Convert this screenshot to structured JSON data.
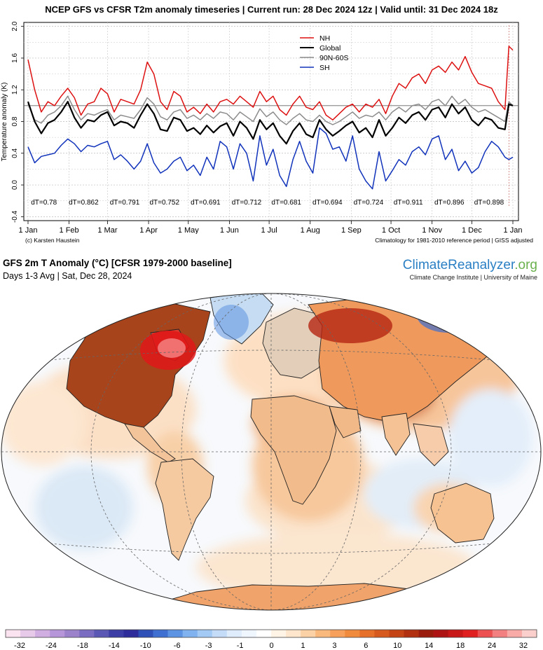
{
  "timeseries": {
    "title": "NCEP GFS vs CFSR T2m anomaly timeseries | Current run: 28 Dec 2024 12z | Valid until: 31 Dec 2024 18z",
    "credit_left": "(c) Karsten Haustein",
    "credit_right": "Climatology for 1981-2010 reference period | GISS adjusted"
  },
  "chart_data": {
    "type": "line",
    "title": "NCEP GFS vs CFSR T2m anomaly timeseries",
    "ylabel": "Temperature anomaly (K)",
    "xlabel": "",
    "ylim": [
      -0.45,
      2.05
    ],
    "xlim": [
      0,
      366
    ],
    "yticks": [
      -0.4,
      0.0,
      0.4,
      0.8,
      1.2,
      1.6,
      2.0
    ],
    "ytick_labels": [
      "-0.4",
      "0.0",
      "0.4",
      "0.8",
      "1.2",
      "1.6",
      "2.0"
    ],
    "reference_line": 1.0,
    "xticks": [
      0,
      31,
      60,
      91,
      121,
      152,
      182,
      213,
      244,
      274,
      305,
      335,
      366
    ],
    "xtick_labels": [
      "1 Jan",
      "1 Feb",
      "1 Mar",
      "1 Apr",
      "1 May",
      "1 Jun",
      "1 Jul",
      "1 Aug",
      "1 Sep",
      "1 Oct",
      "1 Nov",
      "1 Dec",
      "1 Jan"
    ],
    "legend": {
      "placement": "top-center",
      "entries": [
        "NH",
        "Global",
        "90N-60S",
        "SH"
      ]
    },
    "x": [
      0,
      5,
      10,
      15,
      20,
      25,
      30,
      35,
      40,
      45,
      50,
      55,
      60,
      65,
      70,
      75,
      80,
      85,
      90,
      95,
      100,
      105,
      110,
      115,
      120,
      125,
      130,
      135,
      140,
      145,
      150,
      155,
      160,
      165,
      170,
      175,
      180,
      185,
      190,
      195,
      200,
      205,
      210,
      215,
      220,
      225,
      230,
      235,
      240,
      245,
      250,
      255,
      260,
      265,
      270,
      275,
      280,
      285,
      290,
      295,
      300,
      305,
      310,
      315,
      320,
      325,
      330,
      335,
      340,
      345,
      350,
      355,
      360,
      363,
      366
    ],
    "series": [
      {
        "name": "NH",
        "color": "#dd1111",
        "values": [
          1.58,
          1.2,
          0.92,
          1.05,
          1.0,
          1.12,
          1.22,
          1.1,
          0.88,
          1.02,
          1.05,
          1.22,
          1.15,
          0.92,
          1.08,
          1.05,
          1.02,
          1.2,
          1.55,
          1.4,
          1.05,
          0.95,
          1.18,
          1.12,
          0.92,
          0.98,
          0.9,
          1.02,
          0.92,
          1.05,
          1.08,
          1.02,
          1.12,
          1.05,
          0.98,
          1.18,
          1.05,
          1.12,
          0.95,
          0.88,
          1.02,
          1.12,
          0.98,
          0.95,
          1.05,
          0.88,
          0.82,
          0.9,
          0.98,
          1.02,
          0.92,
          1.02,
          0.98,
          1.08,
          0.9,
          1.12,
          1.28,
          1.22,
          1.35,
          1.4,
          1.28,
          1.45,
          1.5,
          1.42,
          1.55,
          1.45,
          1.62,
          1.42,
          1.28,
          1.25,
          1.22,
          1.05,
          0.95,
          1.75,
          1.7
        ]
      },
      {
        "name": "90N-60S",
        "color": "#8c8c8c",
        "values": [
          1.02,
          0.82,
          0.78,
          0.88,
          0.92,
          1.0,
          1.12,
          0.95,
          0.82,
          0.9,
          0.88,
          0.92,
          0.95,
          0.82,
          0.88,
          0.86,
          0.84,
          0.95,
          1.1,
          1.02,
          0.86,
          0.82,
          0.92,
          0.95,
          0.84,
          0.88,
          0.82,
          0.9,
          0.84,
          0.92,
          0.9,
          0.82,
          0.92,
          0.86,
          0.8,
          0.96,
          0.86,
          0.92,
          0.82,
          0.76,
          0.84,
          0.9,
          0.82,
          0.8,
          0.88,
          0.8,
          0.76,
          0.8,
          0.86,
          0.92,
          0.84,
          0.88,
          0.86,
          0.92,
          0.82,
          0.92,
          0.98,
          0.92,
          1.0,
          1.02,
          0.95,
          1.05,
          1.08,
          1.0,
          1.12,
          1.02,
          1.08,
          0.98,
          0.92,
          0.95,
          0.9,
          0.85,
          0.8,
          1.05,
          1.0
        ]
      },
      {
        "name": "Global",
        "color": "#000000",
        "values": [
          1.05,
          0.8,
          0.65,
          0.78,
          0.82,
          0.92,
          1.05,
          0.85,
          0.72,
          0.82,
          0.8,
          0.88,
          0.92,
          0.75,
          0.8,
          0.78,
          0.72,
          0.88,
          1.02,
          0.9,
          0.7,
          0.68,
          0.85,
          0.82,
          0.68,
          0.72,
          0.64,
          0.75,
          0.66,
          0.74,
          0.78,
          0.62,
          0.8,
          0.72,
          0.58,
          0.82,
          0.7,
          0.78,
          0.62,
          0.52,
          0.68,
          0.78,
          0.64,
          0.6,
          0.82,
          0.7,
          0.62,
          0.68,
          0.75,
          0.8,
          0.66,
          0.72,
          0.6,
          0.82,
          0.62,
          0.72,
          0.85,
          0.78,
          0.88,
          0.92,
          0.82,
          0.95,
          0.98,
          0.85,
          1.02,
          0.9,
          0.98,
          0.82,
          0.75,
          0.85,
          0.82,
          0.72,
          0.7,
          1.02,
          1.0
        ]
      },
      {
        "name": "SH",
        "color": "#1133bb",
        "values": [
          0.48,
          0.28,
          0.36,
          0.38,
          0.4,
          0.5,
          0.58,
          0.52,
          0.42,
          0.5,
          0.48,
          0.52,
          0.55,
          0.32,
          0.38,
          0.3,
          0.2,
          0.3,
          0.52,
          0.28,
          0.15,
          0.2,
          0.3,
          0.35,
          0.18,
          0.25,
          0.12,
          0.35,
          0.2,
          0.55,
          0.48,
          0.2,
          0.52,
          0.4,
          0.05,
          0.62,
          0.25,
          0.45,
          0.12,
          -0.02,
          0.32,
          0.55,
          0.3,
          0.15,
          0.72,
          0.65,
          0.45,
          0.48,
          0.3,
          0.62,
          0.2,
          0.05,
          -0.05,
          0.42,
          0.05,
          0.18,
          0.32,
          0.25,
          0.42,
          0.48,
          0.38,
          0.58,
          0.62,
          0.32,
          0.45,
          0.18,
          0.3,
          0.15,
          0.22,
          0.42,
          0.55,
          0.48,
          0.35,
          0.32,
          0.35
        ]
      }
    ],
    "annotations": [
      {
        "x": 12,
        "text": "dT=0.78"
      },
      {
        "x": 42,
        "text": "dT=0.862"
      },
      {
        "x": 73,
        "text": "dT=0.791"
      },
      {
        "x": 103,
        "text": "dT=0.752"
      },
      {
        "x": 134,
        "text": "dT=0.691"
      },
      {
        "x": 165,
        "text": "dT=0.712"
      },
      {
        "x": 195,
        "text": "dT=0.681"
      },
      {
        "x": 226,
        "text": "dT=0.694"
      },
      {
        "x": 257,
        "text": "dT=0.724"
      },
      {
        "x": 287,
        "text": "dT=0.911"
      },
      {
        "x": 318,
        "text": "dT=0.896"
      },
      {
        "x": 348,
        "text": "dT=0.898"
      }
    ]
  },
  "map": {
    "title": "GFS 2m T Anomaly (°C) [CFSR 1979-2000 baseline]",
    "subtitle": "Days 1-3 Avg | Sat, Dec 28, 2024",
    "brand_main": "ClimateReanalyzer",
    "brand_org": ".org",
    "brand_sub": "Climate Change Institute | University of Maine"
  },
  "colorbar": {
    "labels": [
      "-32",
      "-24",
      "-18",
      "-14",
      "-10",
      "-6",
      "-3",
      "-1",
      "0",
      "1",
      "3",
      "6",
      "10",
      "14",
      "18",
      "24",
      "32"
    ],
    "colors": [
      "#fbe3ef",
      "#e7c9ea",
      "#d0aee2",
      "#b696d8",
      "#9c82ca",
      "#7a6cc0",
      "#5a58b4",
      "#3c3ea6",
      "#2d2c9a",
      "#2f50b6",
      "#3f6fd0",
      "#5c93e2",
      "#7fb2ee",
      "#a3caf4",
      "#c5dcf8",
      "#dfecfb",
      "#f0f6fe",
      "#ffffff",
      "#fff4e6",
      "#fde6cc",
      "#fbd2a6",
      "#f9b97c",
      "#f6a05c",
      "#f08a3c",
      "#e6702a",
      "#d65a1e",
      "#c44416",
      "#b03010",
      "#9a1c0c",
      "#ae1414",
      "#c81818",
      "#e02020",
      "#ec5050",
      "#f28080",
      "#f7aaa6",
      "#fbd0cc"
    ]
  }
}
